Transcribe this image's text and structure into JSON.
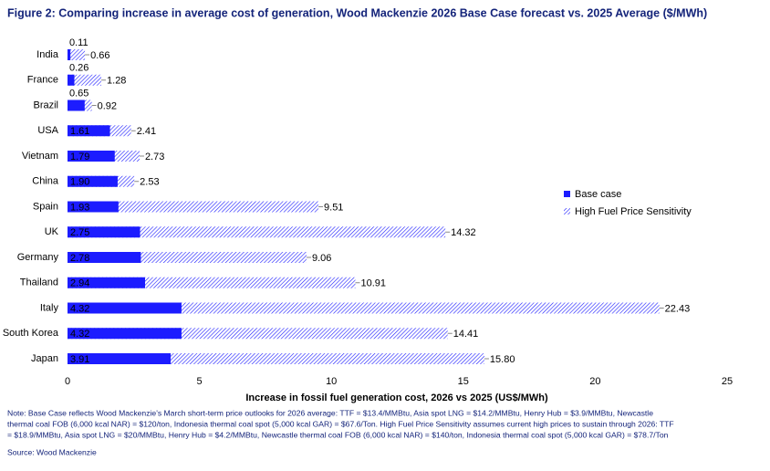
{
  "chart_data": {
    "type": "bar",
    "orientation": "horizontal",
    "overlay": true,
    "title": "Figure 2: Comparing increase in average cost of generation, Wood Mackenzie 2026 Base Case forecast vs. 2025 Average ($/MWh)",
    "x_label": "Increase in fossil fuel generation cost, 2026 vs 2025 (US$/MWh)",
    "categories": [
      "India",
      "France",
      "Brazil",
      "USA",
      "Vietnam",
      "China",
      "Spain",
      "UK",
      "Germany",
      "Thailand",
      "Italy",
      "South Korea",
      "Japan"
    ],
    "series": [
      {
        "name": "Base case",
        "color": "#1c1cff",
        "fill": "solid",
        "values": [
          0.11,
          0.26,
          0.65,
          1.61,
          1.79,
          1.9,
          1.93,
          2.75,
          2.78,
          2.94,
          4.32,
          4.32,
          3.91
        ],
        "value_labels": [
          "0.11",
          "0.26",
          "0.65",
          "1.61",
          "1.79",
          "1.90",
          "1.93",
          "2.75",
          "2.78",
          "2.94",
          "4.32",
          "4.32",
          "3.91"
        ]
      },
      {
        "name": "High Fuel Price Sensitivity",
        "color": "#1c1cff",
        "fill": "hatched",
        "values": [
          0.66,
          1.28,
          0.92,
          2.41,
          2.73,
          2.53,
          9.51,
          14.32,
          9.06,
          10.91,
          22.43,
          14.41,
          15.8
        ],
        "value_labels": [
          "0.66",
          "1.28",
          "0.92",
          "2.41",
          "2.73",
          "2.53",
          "9.51",
          "14.32",
          "9.06",
          "10.91",
          "22.43",
          "14.41",
          "15.80"
        ]
      }
    ],
    "xlim": [
      0,
      25
    ],
    "xticks": [
      0,
      5,
      10,
      15,
      20,
      25
    ],
    "grid": false,
    "legend": "right",
    "note": [
      "Note: Base Case reflects Wood Mackenzie's March short-term price outlooks for 2026 average: TTF = $13.4/MMBtu, Asia spot LNG = $14.2/MMBtu, Henry Hub = $3.9/MMBtu, Newcastle",
      "thermal coal FOB (6,000 kcal NAR) = $120/ton, Indonesia thermal coal spot (5,000 kcal GAR) = $67.6/Ton. High Fuel Price Sensitivity assumes current high prices to sustain through 2026: TTF",
      "= $18.9/MMBtu, Asia spot LNG = $20/MMBtu, Henry Hub = $4.2/MMBtu, Newcastle thermal coal FOB (6,000 kcal NAR) = $140/ton, Indonesia thermal coal spot (5,000 kcal GAR) = $78.7/Ton"
    ],
    "source": "Source: Wood Mackenzie"
  }
}
